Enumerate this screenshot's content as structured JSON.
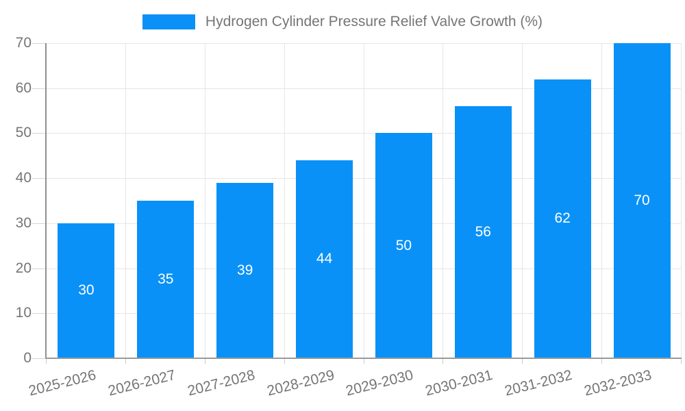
{
  "chart_data": {
    "type": "bar",
    "title": "Hydrogen Cylinder Pressure Relief Valve Growth (%)",
    "categories": [
      "2025-2026",
      "2026-2027",
      "2027-2028",
      "2028-2029",
      "2029-2030",
      "2030-2031",
      "2031-2032",
      "2032-2033"
    ],
    "values": [
      30,
      35,
      39,
      44,
      50,
      56,
      62,
      70
    ],
    "xlabel": "",
    "ylabel": "",
    "ylim": [
      0,
      70
    ],
    "yticks": [
      0,
      10,
      20,
      30,
      40,
      50,
      60,
      70
    ],
    "grid": true,
    "legend_position": "top",
    "colors": {
      "bar": "#0a91f7",
      "bar_value_text": "#ffffff",
      "axis_text": "#757575",
      "gridline": "#e6e6e6",
      "axis_line": "#8f8f8f"
    }
  }
}
